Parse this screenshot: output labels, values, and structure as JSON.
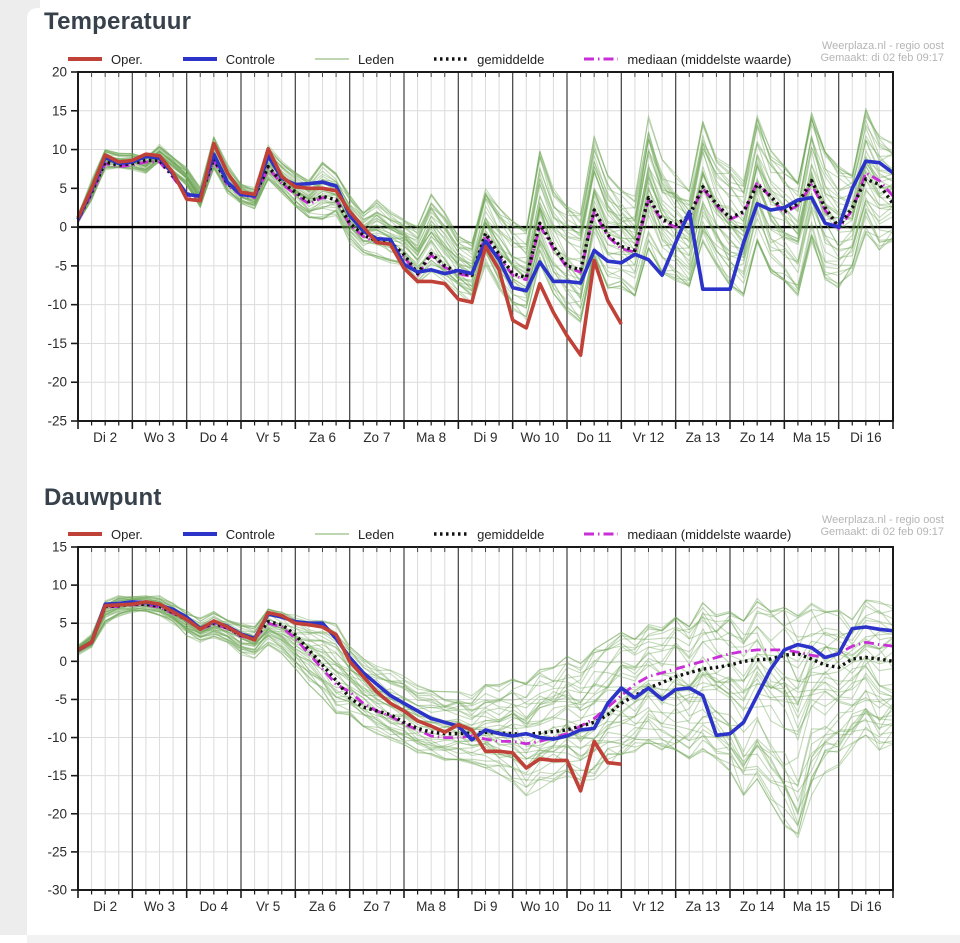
{
  "attribution": {
    "line1": "Weerplaza.nl - regio oost",
    "line2": "Gemaakt: di 02 feb 09:17"
  },
  "legend": {
    "items": [
      {
        "label": "Oper.",
        "color": "#c04137",
        "width": 4,
        "dash": ""
      },
      {
        "label": "Controle",
        "color": "#2c33c8",
        "width": 4,
        "dash": ""
      },
      {
        "label": "Leden",
        "color": "#a8c899",
        "width": 1.4,
        "dash": ""
      },
      {
        "label": "gemiddelde",
        "color": "#111111",
        "width": 3.6,
        "dash": "2.5 3.5"
      },
      {
        "label": "mediaan (middelste waarde)",
        "color": "#c92fd6",
        "width": 3,
        "dash": "10 4 1.5 4"
      }
    ]
  },
  "chart_data": [
    {
      "type": "line",
      "title": "Temperatuur",
      "x_categories": [
        "Di 2",
        "Wo 3",
        "Do 4",
        "Vr 5",
        "Za 6",
        "Zo 7",
        "Ma 8",
        "Di 9",
        "Wo 10",
        "Do 11",
        "Vr 12",
        "Za 13",
        "Zo 14",
        "Ma 15",
        "Di 16"
      ],
      "x_step_hours": 6,
      "ylim": [
        -25,
        20
      ],
      "ytick_step": 5,
      "zero_line": true,
      "series": [
        {
          "name": "Oper.",
          "color": "#c04137",
          "width": 3.6,
          "dash": "",
          "values": [
            1.2,
            5.0,
            9.3,
            8.4,
            8.6,
            9.4,
            9.2,
            7.0,
            3.6,
            3.4,
            10.8,
            7.0,
            4.5,
            4.2,
            10.1,
            6.5,
            5.2,
            5.0,
            5.0,
            4.7,
            2.0,
            0.0,
            -2.0,
            -2.2,
            -5.3,
            -7.0,
            -7.0,
            -7.3,
            -9.3,
            -9.7,
            -2.5,
            -5.5,
            -12.0,
            -13.0,
            -7.3,
            -11.0,
            -14.0,
            -16.5,
            -4.3,
            -9.5,
            -12.5
          ]
        },
        {
          "name": "Controle",
          "color": "#2c33c8",
          "width": 3.6,
          "dash": "",
          "values": [
            1.0,
            4.8,
            9.0,
            8.2,
            8.4,
            9.1,
            8.9,
            6.8,
            4.2,
            4.0,
            9.4,
            5.8,
            4.2,
            4.0,
            9.2,
            6.3,
            5.5,
            5.6,
            5.8,
            5.3,
            1.5,
            -0.5,
            -1.5,
            -1.6,
            -4.8,
            -5.8,
            -5.5,
            -6.0,
            -5.6,
            -6.0,
            -1.8,
            -4.2,
            -7.8,
            -8.2,
            -4.5,
            -7.0,
            -7.0,
            -7.2,
            -3.0,
            -4.4,
            -4.6,
            -3.5,
            -4.2,
            -6.2,
            -2.0,
            2.0,
            -8.0,
            -8.0,
            -8.0,
            -2.0,
            3.0,
            2.2,
            2.5,
            3.5,
            3.8,
            0.5,
            0.0,
            5.0,
            8.5,
            8.3,
            7.0
          ]
        },
        {
          "name": "gemiddelde",
          "color": "#111111",
          "width": 3.4,
          "dash": "2.5 3.5",
          "values": [
            1.0,
            4.5,
            8.4,
            8.0,
            8.2,
            8.6,
            8.6,
            6.6,
            4.3,
            3.9,
            8.8,
            5.6,
            4.3,
            4.0,
            7.8,
            5.8,
            4.5,
            3.3,
            4.0,
            3.5,
            0.5,
            -1.0,
            -1.8,
            -2.0,
            -3.5,
            -6.0,
            -3.4,
            -5.0,
            -5.8,
            -6.2,
            -0.8,
            -3.5,
            -6.0,
            -6.5,
            0.5,
            -2.5,
            -5.0,
            -5.5,
            2.2,
            -1.0,
            -2.5,
            -3.0,
            3.8,
            1.0,
            0.3,
            1.5,
            5.2,
            3.0,
            1.2,
            2.0,
            5.5,
            4.0,
            2.0,
            3.0,
            6.0,
            2.5,
            0.0,
            2.5,
            6.2,
            5.5,
            3.0
          ]
        },
        {
          "name": "mediaan (middelste waarde)",
          "color": "#c92fd6",
          "width": 2.8,
          "dash": "10 4 1.5 4",
          "values": [
            0.8,
            4.3,
            8.2,
            7.8,
            8.0,
            8.4,
            8.4,
            6.4,
            4.1,
            3.7,
            8.6,
            5.4,
            4.1,
            3.8,
            7.6,
            5.6,
            4.2,
            3.0,
            3.8,
            3.6,
            0.3,
            -1.2,
            -2.0,
            -2.2,
            -3.8,
            -6.2,
            -3.6,
            -5.2,
            -6.0,
            -6.4,
            -1.0,
            -3.8,
            -6.2,
            -6.8,
            0.2,
            -2.8,
            -5.2,
            -5.8,
            2.0,
            -1.2,
            -2.8,
            -3.2,
            3.5,
            0.8,
            0.0,
            1.2,
            5.0,
            2.8,
            1.0,
            1.8,
            5.8,
            3.8,
            1.8,
            2.8,
            5.5,
            2.2,
            -0.2,
            2.2,
            7.0,
            6.0,
            4.0
          ]
        }
      ],
      "ensemble": {
        "name": "Leden",
        "color": "#6fa757",
        "opacity": 0.42,
        "count": 40,
        "lo": [
          0.5,
          3.5,
          7.5,
          7.5,
          7.5,
          7.0,
          8.5,
          7.0,
          5.5,
          2.5,
          7.5,
          4.5,
          3.0,
          2.5,
          6.0,
          4.5,
          2.5,
          1.0,
          1.0,
          1.5,
          -2.0,
          -3.5,
          -4.0,
          -4.5,
          -5.0,
          -7.5,
          -6.0,
          -7.5,
          -9.0,
          -10.0,
          -5.0,
          -8.0,
          -11.0,
          -12.0,
          -5.0,
          -9.0,
          -11.0,
          -12.5,
          -4.0,
          -8.0,
          -8.0,
          -9.0,
          -3.0,
          -6.0,
          -7.0,
          -8.0,
          -2.0,
          -5.0,
          -8.0,
          -9.0,
          -2.0,
          -6.0,
          -7.0,
          -9.0,
          -2.0,
          -7.0,
          -8.0,
          -6.0,
          -1.0,
          -3.0,
          -2.0
        ],
        "hi": [
          1.5,
          6.0,
          10.0,
          9.5,
          9.5,
          9.0,
          10.5,
          9.0,
          7.5,
          5.0,
          11.5,
          8.0,
          5.5,
          5.0,
          10.5,
          8.5,
          7.0,
          6.0,
          8.5,
          7.0,
          4.0,
          2.0,
          3.5,
          2.0,
          1.0,
          0.0,
          4.5,
          2.0,
          -1.0,
          -2.0,
          5.0,
          2.5,
          1.0,
          0.0,
          10.0,
          5.0,
          3.0,
          2.0,
          12.0,
          7.0,
          5.0,
          4.0,
          14.5,
          9.0,
          7.0,
          5.0,
          14.0,
          9.0,
          8.0,
          6.0,
          14.5,
          10.0,
          8.0,
          6.0,
          15.0,
          10.0,
          8.0,
          7.0,
          15.5,
          12.0,
          11.0
        ]
      }
    },
    {
      "type": "line",
      "title": "Dauwpunt",
      "x_categories": [
        "Di 2",
        "Wo 3",
        "Do 4",
        "Vr 5",
        "Za 6",
        "Zo 7",
        "Ma 8",
        "Di 9",
        "Wo 10",
        "Do 11",
        "Vr 12",
        "Za 13",
        "Zo 14",
        "Ma 15",
        "Di 16"
      ],
      "x_step_hours": 6,
      "ylim": [
        -30,
        15
      ],
      "ytick_step": 5,
      "zero_line": false,
      "series": [
        {
          "name": "Oper.",
          "color": "#c04137",
          "width": 3.6,
          "dash": "",
          "values": [
            1.5,
            2.5,
            7.3,
            7.4,
            7.5,
            7.8,
            7.5,
            6.5,
            5.5,
            4.2,
            5.3,
            4.5,
            3.5,
            2.8,
            6.4,
            6.0,
            5.0,
            4.8,
            4.5,
            3.5,
            0.0,
            -2.0,
            -4.0,
            -5.5,
            -6.5,
            -7.8,
            -8.5,
            -9.3,
            -8.3,
            -9.0,
            -11.8,
            -11.8,
            -12.0,
            -14.0,
            -12.8,
            -13.0,
            -13.0,
            -17.0,
            -10.5,
            -13.3,
            -13.5
          ]
        },
        {
          "name": "Controle",
          "color": "#2c33c8",
          "width": 3.6,
          "dash": "",
          "values": [
            1.5,
            2.5,
            7.5,
            7.6,
            7.8,
            7.7,
            7.4,
            6.8,
            5.8,
            4.3,
            5.2,
            4.6,
            3.6,
            3.0,
            6.2,
            5.8,
            5.2,
            5.0,
            5.0,
            3.0,
            0.5,
            -1.5,
            -3.0,
            -4.5,
            -5.5,
            -6.5,
            -7.5,
            -8.0,
            -8.5,
            -10.3,
            -9.0,
            -9.5,
            -9.8,
            -9.5,
            -10.0,
            -10.2,
            -9.8,
            -9.0,
            -8.8,
            -5.5,
            -3.5,
            -4.8,
            -3.5,
            -5.0,
            -3.7,
            -3.5,
            -4.5,
            -9.7,
            -9.5,
            -8.0,
            -4.5,
            -1.0,
            1.5,
            2.2,
            1.8,
            0.5,
            1.0,
            4.3,
            4.5,
            4.2,
            4.0
          ]
        },
        {
          "name": "gemiddelde",
          "color": "#111111",
          "width": 3.4,
          "dash": "2.5 3.5",
          "values": [
            1.5,
            2.5,
            7.2,
            7.3,
            7.5,
            7.5,
            7.2,
            6.4,
            5.5,
            4.3,
            5.0,
            4.4,
            3.4,
            3.0,
            5.2,
            4.8,
            3.5,
            1.5,
            -0.5,
            -2.5,
            -4.8,
            -6.0,
            -6.5,
            -7.0,
            -8.0,
            -8.8,
            -9.3,
            -9.5,
            -9.5,
            -9.4,
            -9.3,
            -9.4,
            -9.5,
            -9.6,
            -9.4,
            -9.2,
            -9.0,
            -8.5,
            -8.0,
            -7.0,
            -5.5,
            -4.5,
            -3.5,
            -2.8,
            -2.0,
            -1.5,
            -1.0,
            -0.8,
            -0.5,
            0.0,
            0.2,
            0.3,
            0.8,
            1.0,
            0.3,
            -0.5,
            -0.8,
            0.3,
            0.5,
            0.3,
            0.0
          ]
        },
        {
          "name": "mediaan (middelste waarde)",
          "color": "#c92fd6",
          "width": 2.8,
          "dash": "10 4 1.5 4",
          "values": [
            1.4,
            2.4,
            7.1,
            7.2,
            7.4,
            7.4,
            7.1,
            6.3,
            5.4,
            4.2,
            4.9,
            4.3,
            3.3,
            2.9,
            5.0,
            4.5,
            3.0,
            1.0,
            -1.0,
            -3.0,
            -4.0,
            -5.5,
            -6.5,
            -7.2,
            -8.2,
            -9.0,
            -9.8,
            -10.0,
            -10.0,
            -9.8,
            -10.2,
            -10.5,
            -10.5,
            -10.8,
            -10.5,
            -10.0,
            -9.5,
            -8.5,
            -7.5,
            -6.0,
            -4.5,
            -3.0,
            -2.0,
            -1.5,
            -1.0,
            -0.5,
            0.0,
            0.5,
            1.0,
            1.3,
            1.5,
            1.5,
            1.5,
            1.2,
            0.8,
            0.5,
            1.0,
            2.0,
            2.5,
            2.2,
            2.0
          ]
        }
      ],
      "ensemble": {
        "name": "Leden",
        "color": "#6fa757",
        "opacity": 0.42,
        "count": 40,
        "lo": [
          1.0,
          2.0,
          5.0,
          6.0,
          6.5,
          6.5,
          6.0,
          5.0,
          3.5,
          2.5,
          3.0,
          2.5,
          1.0,
          0.5,
          2.0,
          1.0,
          -1.0,
          -3.0,
          -5.0,
          -7.0,
          -7.0,
          -8.5,
          -9.5,
          -10.5,
          -11.0,
          -12.0,
          -12.5,
          -13.0,
          -13.0,
          -13.5,
          -14.0,
          -15.0,
          -16.0,
          -18.0,
          -17.0,
          -16.0,
          -16.0,
          -17.0,
          -16.0,
          -14.0,
          -13.0,
          -12.0,
          -11.0,
          -12.0,
          -12.0,
          -13.0,
          -12.0,
          -13.0,
          -15.0,
          -18.0,
          -16.0,
          -19.0,
          -22.0,
          -25.0,
          -18.0,
          -15.0,
          -14.0,
          -12.0,
          -10.0,
          -12.0,
          -11.0
        ],
        "hi": [
          2.0,
          3.5,
          8.0,
          8.5,
          8.5,
          8.5,
          8.5,
          7.5,
          6.5,
          5.5,
          6.5,
          5.5,
          5.0,
          4.5,
          7.0,
          6.5,
          6.0,
          5.5,
          5.5,
          5.0,
          2.0,
          0.5,
          -0.5,
          -1.0,
          -2.0,
          -3.0,
          -3.5,
          -4.0,
          -4.0,
          -4.5,
          -3.0,
          -3.0,
          -2.0,
          -2.5,
          -1.0,
          -0.5,
          1.0,
          0.0,
          2.0,
          3.0,
          4.0,
          3.0,
          5.0,
          4.5,
          6.0,
          5.0,
          8.0,
          6.5,
          7.0,
          6.0,
          8.5,
          7.0,
          7.5,
          6.5,
          8.0,
          7.0,
          7.0,
          6.0,
          8.5,
          8.0,
          7.5
        ]
      }
    }
  ]
}
